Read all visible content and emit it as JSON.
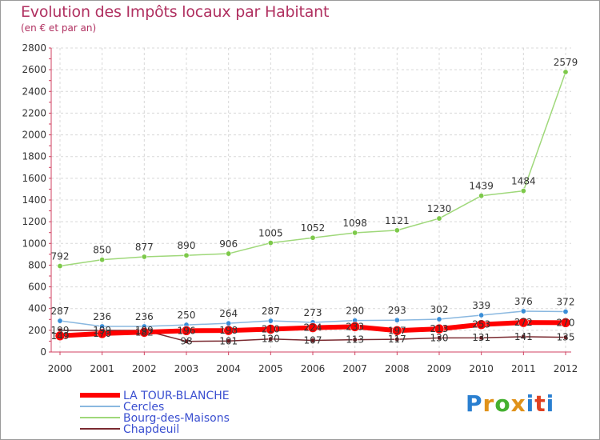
{
  "chart_data": {
    "type": "line",
    "title": "Evolution des Impôts locaux par Habitant",
    "subtitle": "(en € et par an)",
    "xlabel": "",
    "ylabel": "",
    "ylim": [
      0,
      2800
    ],
    "yticks": [
      0,
      200,
      400,
      600,
      800,
      1000,
      1200,
      1400,
      1600,
      1800,
      2000,
      2200,
      2400,
      2600,
      2800
    ],
    "categories": [
      "2000",
      "2001",
      "2002",
      "2003",
      "2004",
      "2005",
      "2006",
      "2007",
      "2008",
      "2009",
      "2010",
      "2011",
      "2012"
    ],
    "series": [
      {
        "name": "Bourg-des-Maisons",
        "color": "#9fd87a",
        "marker": "#7dc94a",
        "values": [
          792,
          850,
          877,
          890,
          906,
          1005,
          1052,
          1098,
          1121,
          1230,
          1439,
          1484,
          2579
        ],
        "labels": [
          "792",
          "850",
          "877",
          "890",
          "906",
          "1005",
          "1052",
          "1098",
          "1121",
          "1230",
          "1439",
          "1484",
          "2579"
        ]
      },
      {
        "name": "Cercles",
        "color": "#8ab8e0",
        "marker": "#3a8ed8",
        "values": [
          287,
          236,
          236,
          250,
          264,
          287,
          273,
          290,
          293,
          302,
          339,
          376,
          372
        ],
        "labels": [
          "287",
          "236",
          "236",
          "250",
          "264",
          "287",
          "273",
          "290",
          "293",
          "302",
          "339",
          "376",
          "372"
        ]
      },
      {
        "name": "Chapdeuil",
        "color": "#7a2a30",
        "marker": "#6a1a20",
        "values": [
          199,
          199,
          199,
          98,
          101,
          120,
          107,
          113,
          117,
          130,
          131,
          141,
          135
        ],
        "labels": [
          "199",
          "199",
          "199",
          "98",
          "101",
          "120",
          "107",
          "113",
          "117",
          "130",
          "131",
          "141",
          "135"
        ]
      },
      {
        "name": "LA TOUR-BLANCHE",
        "color": "#ff0000",
        "marker": "#ff0000",
        "values": [
          149,
          170,
          182,
          196,
          198,
          210,
          224,
          233,
          197,
          213,
          253,
          272,
          270
        ],
        "labels": [
          "149",
          "170",
          "182",
          "196",
          "198",
          "210",
          "224",
          "233",
          "197",
          "213",
          "253",
          "272",
          "270"
        ]
      }
    ],
    "legend": [
      "LA TOUR-BLANCHE",
      "Cercles",
      "Bourg-des-Maisons",
      "Chapdeuil"
    ],
    "legend_position": "bottom-left"
  },
  "brand": {
    "logo_letters": [
      "P",
      "r",
      "o",
      "x",
      "i",
      "t",
      "i"
    ],
    "logo_colors": [
      "#2a7fd0",
      "#e0921a",
      "#44b030",
      "#e0921a",
      "#2a7fd0",
      "#e04020",
      "#2a7fd0"
    ]
  }
}
